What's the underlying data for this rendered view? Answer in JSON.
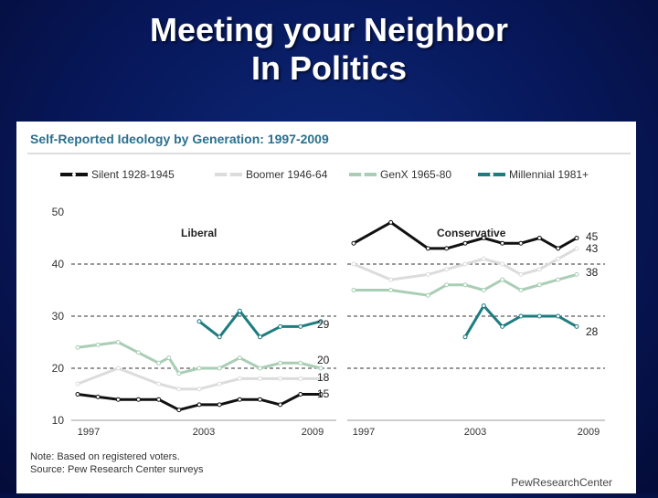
{
  "slide": {
    "title_line1": "Meeting your Neighbor",
    "title_line2": "In Politics"
  },
  "colors": {
    "background": "#07175a",
    "title_text": "#ffffff",
    "chart_title": "#2b6f8d",
    "silent": "#111111",
    "boomer": "#dcdcdc",
    "genx": "#a9ceb5",
    "millennial": "#1e7c80"
  },
  "chart_data": {
    "type": "line",
    "title": "Self-Reported Ideology by Generation: 1997-2009",
    "legend_position": "top",
    "grid": "dashed horizontal",
    "ylim": [
      10,
      50
    ],
    "yticks": [
      "50",
      "40",
      "30",
      "20",
      "10"
    ],
    "xticks": [
      "1997",
      "2003",
      "2009"
    ],
    "xlim": [
      1997,
      2009
    ],
    "note": "Note: Based on registered voters.",
    "source": "Source: Pew Research Center surveys",
    "credit": "PewResearchCenter",
    "series": [
      {
        "key": "silent",
        "name": "Silent 1928-1945"
      },
      {
        "key": "boomer",
        "name": "Boomer 1946-64"
      },
      {
        "key": "genx",
        "name": "GenX 1965-80"
      },
      {
        "key": "millennial",
        "name": "Millennial 1981+"
      }
    ],
    "panels": [
      {
        "label": "Liberal",
        "end_labels": {
          "millennial": "29",
          "genx": "20",
          "boomer": "18",
          "silent": "15"
        },
        "lines": {
          "genx": {
            "x": [
              1997,
              1998,
              1999,
              2000,
              2001,
              2001.5,
              2002,
              2003,
              2004,
              2005,
              2006,
              2007,
              2008,
              2009
            ],
            "y": [
              24,
              24.5,
              25,
              23,
              21,
              22,
              19,
              20,
              20,
              22,
              20,
              21,
              21,
              20
            ]
          },
          "boomer": {
            "x": [
              1997,
              1999,
              2001,
              2002,
              2003,
              2004,
              2005,
              2006,
              2007,
              2008,
              2009
            ],
            "y": [
              17,
              20,
              17,
              16,
              16,
              17,
              18,
              18,
              18,
              18,
              18
            ]
          },
          "silent": {
            "x": [
              1997,
              1998,
              1999,
              2000,
              2001,
              2002,
              2003,
              2004,
              2005,
              2006,
              2007,
              2008,
              2009
            ],
            "y": [
              15,
              14.5,
              14,
              14,
              14,
              12,
              13,
              13,
              14,
              14,
              13,
              15,
              15
            ]
          },
          "millennial": {
            "x": [
              2003,
              2004,
              2005,
              2006,
              2007,
              2008,
              2009
            ],
            "y": [
              29,
              26,
              31,
              26,
              28,
              28,
              29
            ]
          }
        }
      },
      {
        "label": "Conservative",
        "end_labels": {
          "silent": "45",
          "boomer": "43",
          "genx": "38",
          "millennial": "28"
        },
        "lines": {
          "silent": {
            "x": [
              1997,
              1999,
              2001,
              2002,
              2003,
              2004,
              2005,
              2006,
              2007,
              2008,
              2009
            ],
            "y": [
              44,
              48,
              43,
              43,
              44,
              45,
              44,
              44,
              45,
              43,
              45
            ]
          },
          "boomer": {
            "x": [
              1997,
              1999,
              2001,
              2002,
              2003,
              2004,
              2005,
              2006,
              2007,
              2008,
              2009
            ],
            "y": [
              40,
              37,
              38,
              39,
              40,
              41,
              40,
              38,
              39,
              41,
              43
            ]
          },
          "genx": {
            "x": [
              1997,
              1999,
              2001,
              2002,
              2003,
              2004,
              2005,
              2006,
              2007,
              2008,
              2009
            ],
            "y": [
              35,
              35,
              34,
              36,
              36,
              35,
              37,
              35,
              36,
              37,
              38
            ]
          },
          "millennial": {
            "x": [
              2003,
              2004,
              2005,
              2006,
              2007,
              2008,
              2009
            ],
            "y": [
              26,
              32,
              28,
              30,
              30,
              30,
              28
            ]
          }
        }
      }
    ]
  }
}
